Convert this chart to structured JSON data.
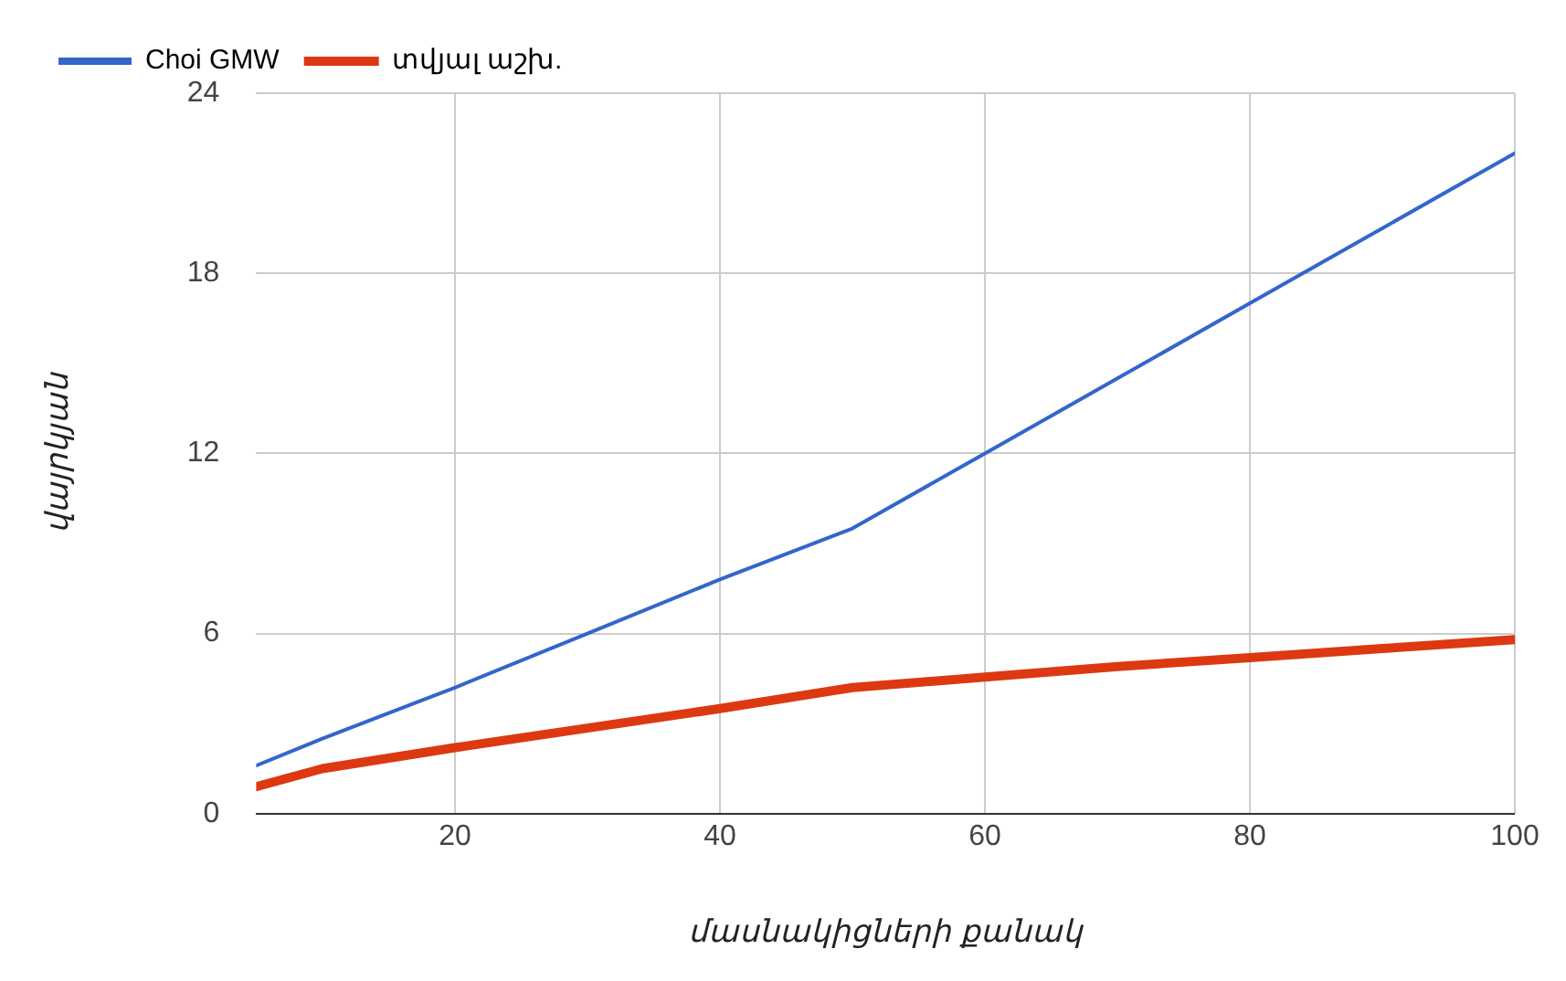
{
  "chart_data": {
    "type": "line",
    "xlabel": "մասնակիցների քանակ",
    "ylabel": "վայրկյան",
    "x": [
      5,
      10,
      20,
      30,
      40,
      50,
      60,
      70,
      80,
      90,
      100
    ],
    "series": [
      {
        "name": "Choi GMW",
        "color": "#3366cc",
        "values": [
          1.6,
          2.5,
          4.2,
          6,
          7.8,
          9.5,
          12,
          14.5,
          17,
          19.5,
          22
        ]
      },
      {
        "name": "տվյալ աշխ.",
        "color": "#dc3912",
        "values": [
          0.9,
          1.5,
          2.2,
          2.85,
          3.5,
          4.2,
          4.55,
          4.9,
          5.2,
          5.5,
          5.8
        ]
      }
    ],
    "xlim": [
      5,
      100
    ],
    "xticks": [
      20,
      40,
      60,
      80,
      100
    ],
    "ylim": [
      0,
      24
    ],
    "yticks": [
      0,
      6,
      12,
      18,
      24
    ],
    "grid": true,
    "legend": "top left",
    "marker": "none",
    "line_style": "solid"
  }
}
